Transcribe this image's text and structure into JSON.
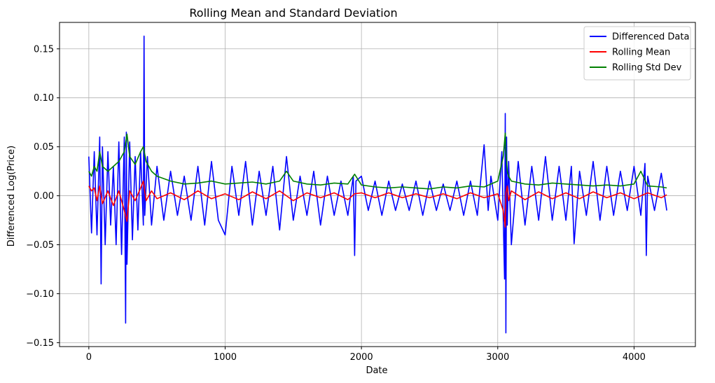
{
  "chart_data": {
    "type": "line",
    "title": "Rolling Mean and Standard Deviation",
    "xlabel": "Date",
    "ylabel": "Differenced Log(Price)",
    "xlim": [
      -215,
      4450
    ],
    "ylim": [
      -0.154,
      0.177
    ],
    "grid": true,
    "legend_position": "top-right",
    "x_ticks": [
      0,
      1000,
      2000,
      3000,
      4000
    ],
    "y_ticks": [
      -0.15,
      -0.1,
      -0.05,
      0.0,
      0.05,
      0.1,
      0.15
    ],
    "y_tick_labels": [
      "−0.15",
      "−0.10",
      "−0.05",
      "0.00",
      "0.05",
      "0.10",
      "0.15"
    ],
    "series": [
      {
        "name": "Differenced Data",
        "color": "#0000ff",
        "x": [
          0,
          20,
          40,
          60,
          80,
          90,
          100,
          120,
          140,
          160,
          180,
          200,
          220,
          240,
          260,
          270,
          275,
          280,
          300,
          320,
          340,
          360,
          380,
          400,
          405,
          410,
          430,
          460,
          500,
          550,
          600,
          650,
          700,
          750,
          800,
          850,
          900,
          950,
          1000,
          1050,
          1100,
          1150,
          1200,
          1250,
          1300,
          1350,
          1400,
          1450,
          1500,
          1550,
          1600,
          1650,
          1700,
          1750,
          1800,
          1850,
          1900,
          1940,
          1950,
          1960,
          2000,
          2050,
          2100,
          2150,
          2200,
          2250,
          2300,
          2350,
          2400,
          2450,
          2500,
          2550,
          2600,
          2650,
          2700,
          2750,
          2800,
          2850,
          2900,
          2930,
          2950,
          3000,
          3030,
          3050,
          3055,
          3060,
          3065,
          3070,
          3080,
          3100,
          3150,
          3200,
          3250,
          3300,
          3350,
          3400,
          3450,
          3500,
          3540,
          3560,
          3600,
          3650,
          3700,
          3750,
          3800,
          3850,
          3900,
          3950,
          4000,
          4050,
          4080,
          4090,
          4100,
          4150,
          4200,
          4240
        ],
        "y": [
          0.04,
          -0.038,
          0.045,
          -0.04,
          0.06,
          -0.09,
          0.05,
          -0.05,
          0.045,
          -0.03,
          0.03,
          -0.05,
          0.055,
          -0.06,
          0.06,
          -0.13,
          0.065,
          -0.07,
          0.055,
          -0.045,
          0.04,
          -0.035,
          0.045,
          -0.03,
          0.163,
          -0.02,
          0.04,
          -0.03,
          0.03,
          -0.025,
          0.025,
          -0.02,
          0.02,
          -0.025,
          0.03,
          -0.03,
          0.035,
          -0.025,
          -0.04,
          0.03,
          -0.02,
          0.035,
          -0.03,
          0.025,
          -0.02,
          0.03,
          -0.035,
          0.04,
          -0.025,
          0.02,
          -0.02,
          0.025,
          -0.03,
          0.02,
          -0.02,
          0.015,
          -0.02,
          0.02,
          -0.061,
          0.015,
          0.02,
          -0.015,
          0.015,
          -0.02,
          0.015,
          -0.015,
          0.012,
          -0.015,
          0.015,
          -0.02,
          0.015,
          -0.015,
          0.012,
          -0.015,
          0.015,
          -0.02,
          0.015,
          -0.02,
          0.052,
          -0.015,
          0.02,
          -0.025,
          0.045,
          -0.085,
          0.084,
          -0.14,
          0.06,
          -0.03,
          0.035,
          -0.05,
          0.035,
          -0.03,
          0.03,
          -0.025,
          0.04,
          -0.025,
          0.03,
          -0.025,
          0.03,
          -0.049,
          0.025,
          -0.02,
          0.035,
          -0.025,
          0.03,
          -0.02,
          0.025,
          -0.015,
          0.03,
          -0.02,
          0.033,
          -0.061,
          0.02,
          -0.015,
          0.023,
          -0.015
        ]
      },
      {
        "name": "Rolling Mean",
        "color": "#ff0000",
        "x": [
          0,
          20,
          40,
          60,
          80,
          100,
          140,
          180,
          220,
          260,
          280,
          300,
          340,
          380,
          400,
          420,
          460,
          500,
          600,
          700,
          800,
          900,
          1000,
          1100,
          1200,
          1300,
          1400,
          1500,
          1600,
          1700,
          1800,
          1900,
          1950,
          2000,
          2100,
          2200,
          2300,
          2400,
          2500,
          2600,
          2700,
          2800,
          2900,
          3000,
          3040,
          3055,
          3060,
          3070,
          3080,
          3100,
          3200,
          3300,
          3400,
          3500,
          3600,
          3700,
          3800,
          3900,
          4000,
          4100,
          4200,
          4240
        ],
        "y": [
          0.01,
          0.005,
          0.008,
          -0.005,
          0.01,
          -0.008,
          0.005,
          -0.01,
          0.005,
          -0.015,
          -0.026,
          0.005,
          -0.005,
          0.008,
          0.015,
          -0.005,
          0.005,
          -0.003,
          0.003,
          -0.004,
          0.005,
          -0.003,
          0.002,
          -0.004,
          0.004,
          -0.003,
          0.005,
          -0.005,
          0.003,
          -0.002,
          0.003,
          -0.004,
          0.002,
          0.003,
          -0.002,
          0.003,
          -0.002,
          0.002,
          -0.002,
          0.002,
          -0.003,
          0.003,
          -0.002,
          0.002,
          -0.015,
          -0.032,
          0.003,
          0.01,
          -0.005,
          0.005,
          -0.004,
          0.004,
          -0.003,
          0.003,
          -0.003,
          0.004,
          -0.002,
          0.003,
          -0.003,
          0.003,
          -0.002,
          0.001
        ]
      },
      {
        "name": "Rolling Std Dev",
        "color": "#008000",
        "x": [
          0,
          20,
          40,
          60,
          80,
          100,
          140,
          180,
          220,
          260,
          280,
          300,
          340,
          380,
          400,
          420,
          460,
          500,
          600,
          700,
          800,
          900,
          1000,
          1100,
          1200,
          1300,
          1400,
          1450,
          1500,
          1600,
          1700,
          1800,
          1900,
          1950,
          2000,
          2100,
          2200,
          2300,
          2400,
          2500,
          2600,
          2700,
          2800,
          2900,
          3000,
          3040,
          3055,
          3060,
          3070,
          3080,
          3100,
          3200,
          3300,
          3400,
          3500,
          3600,
          3700,
          3800,
          3900,
          4000,
          4050,
          4100,
          4200,
          4240
        ],
        "y": [
          0.025,
          0.02,
          0.03,
          0.025,
          0.045,
          0.03,
          0.025,
          0.03,
          0.035,
          0.045,
          0.063,
          0.04,
          0.032,
          0.045,
          0.05,
          0.035,
          0.025,
          0.02,
          0.015,
          0.012,
          0.013,
          0.015,
          0.012,
          0.013,
          0.014,
          0.012,
          0.015,
          0.025,
          0.015,
          0.012,
          0.011,
          0.013,
          0.012,
          0.022,
          0.011,
          0.009,
          0.008,
          0.009,
          0.008,
          0.007,
          0.009,
          0.008,
          0.01,
          0.009,
          0.015,
          0.04,
          0.064,
          0.045,
          0.025,
          0.02,
          0.015,
          0.012,
          0.011,
          0.013,
          0.012,
          0.011,
          0.01,
          0.011,
          0.01,
          0.012,
          0.025,
          0.01,
          0.009,
          0.008
        ]
      }
    ]
  }
}
